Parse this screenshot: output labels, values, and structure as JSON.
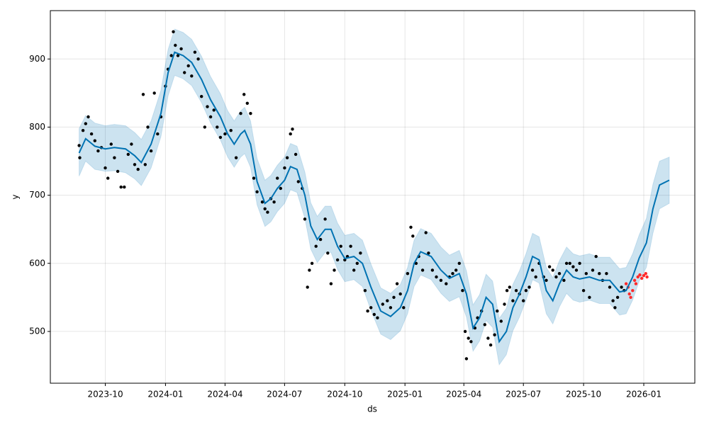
{
  "chart_data": {
    "type": "forecast",
    "xlabel": "ds",
    "ylabel": "y",
    "xlim": [
      "2023-07-09",
      "2026-03-20"
    ],
    "xticks": [
      "2023-10",
      "2024-01",
      "2024-04",
      "2024-07",
      "2024-10",
      "2025-01",
      "2025-04",
      "2025-07",
      "2025-10",
      "2026-01"
    ],
    "ylim": [
      424,
      971
    ],
    "yticks": [
      500,
      600,
      700,
      800,
      900
    ],
    "grid": true,
    "forecast": {
      "color": "#0072B2",
      "band_color": "#0072B2",
      "x": [
        "2023-08-22",
        "2023-09-01",
        "2023-09-15",
        "2023-10-01",
        "2023-10-15",
        "2023-11-01",
        "2023-11-15",
        "2023-11-25",
        "2023-12-10",
        "2023-12-25",
        "2024-01-05",
        "2024-01-15",
        "2024-01-28",
        "2024-02-10",
        "2024-02-25",
        "2024-03-10",
        "2024-03-25",
        "2024-04-05",
        "2024-04-15",
        "2024-04-25",
        "2024-05-01",
        "2024-05-10",
        "2024-05-20",
        "2024-06-01",
        "2024-06-10",
        "2024-06-20",
        "2024-07-01",
        "2024-07-10",
        "2024-07-20",
        "2024-08-01",
        "2024-08-10",
        "2024-08-20",
        "2024-09-01",
        "2024-09-10",
        "2024-09-20",
        "2024-10-01",
        "2024-10-15",
        "2024-10-28",
        "2024-11-10",
        "2024-11-25",
        "2024-12-10",
        "2024-12-25",
        "2025-01-05",
        "2025-01-15",
        "2025-01-25",
        "2025-02-10",
        "2025-02-25",
        "2025-03-10",
        "2025-03-25",
        "2025-04-05",
        "2025-04-15",
        "2025-04-25",
        "2025-05-05",
        "2025-05-15",
        "2025-05-25",
        "2025-06-05",
        "2025-06-15",
        "2025-06-25",
        "2025-07-05",
        "2025-07-15",
        "2025-07-25",
        "2025-08-05",
        "2025-08-15",
        "2025-08-25",
        "2025-09-05",
        "2025-09-15",
        "2025-09-25",
        "2025-10-10",
        "2025-10-25",
        "2025-11-10",
        "2025-11-25",
        "2025-12-05",
        "2025-12-15",
        "2025-12-25",
        "2026-01-05",
        "2026-01-15",
        "2026-01-25",
        "2026-02-09"
      ],
      "values": [
        762,
        783,
        772,
        768,
        770,
        768,
        758,
        748,
        775,
        820,
        880,
        910,
        905,
        895,
        870,
        840,
        815,
        790,
        775,
        790,
        795,
        775,
        720,
        688,
        695,
        710,
        722,
        742,
        738,
        700,
        655,
        635,
        650,
        650,
        625,
        607,
        610,
        600,
        565,
        530,
        522,
        535,
        560,
        600,
        617,
        610,
        590,
        578,
        585,
        555,
        505,
        520,
        550,
        540,
        485,
        500,
        535,
        555,
        580,
        610,
        605,
        560,
        545,
        570,
        590,
        580,
        577,
        580,
        575,
        575,
        558,
        560,
        580,
        608,
        630,
        680,
        715,
        722
      ],
      "lower": [
        728,
        750,
        738,
        735,
        736,
        733,
        724,
        714,
        740,
        786,
        846,
        876,
        871,
        861,
        836,
        806,
        781,
        756,
        741,
        756,
        761,
        741,
        686,
        654,
        661,
        676,
        688,
        708,
        704,
        666,
        621,
        601,
        616,
        616,
        591,
        573,
        576,
        566,
        531,
        496,
        488,
        501,
        526,
        566,
        583,
        576,
        556,
        544,
        551,
        521,
        471,
        486,
        516,
        506,
        451,
        466,
        501,
        521,
        546,
        576,
        571,
        526,
        511,
        536,
        556,
        546,
        543,
        546,
        541,
        541,
        524,
        526,
        546,
        574,
        594,
        644,
        680,
        688
      ],
      "upper": [
        798,
        817,
        806,
        802,
        804,
        802,
        792,
        782,
        809,
        854,
        914,
        944,
        939,
        929,
        904,
        874,
        849,
        824,
        809,
        824,
        829,
        809,
        754,
        722,
        729,
        744,
        756,
        776,
        772,
        734,
        689,
        669,
        684,
        684,
        659,
        641,
        644,
        634,
        599,
        564,
        556,
        569,
        594,
        634,
        651,
        644,
        624,
        612,
        619,
        589,
        539,
        554,
        584,
        574,
        519,
        534,
        569,
        589,
        614,
        644,
        639,
        594,
        579,
        604,
        624,
        614,
        611,
        614,
        609,
        609,
        592,
        594,
        614,
        642,
        666,
        716,
        750,
        756
      ]
    },
    "observed": {
      "color": "#000000",
      "x": [
        "2023-08-22",
        "2023-08-23",
        "2023-08-28",
        "2023-09-01",
        "2023-09-05",
        "2023-09-10",
        "2023-09-15",
        "2023-09-20",
        "2023-09-25",
        "2023-10-01",
        "2023-10-05",
        "2023-10-10",
        "2023-10-15",
        "2023-10-20",
        "2023-10-25",
        "2023-10-30",
        "2023-11-05",
        "2023-11-10",
        "2023-11-15",
        "2023-11-20",
        "2023-11-28",
        "2023-12-01",
        "2023-12-05",
        "2023-12-10",
        "2023-12-15",
        "2023-12-20",
        "2023-12-25",
        "2024-01-01",
        "2024-01-05",
        "2024-01-10",
        "2024-01-13",
        "2024-01-16",
        "2024-01-20",
        "2024-01-25",
        "2024-01-30",
        "2024-02-05",
        "2024-02-10",
        "2024-02-15",
        "2024-02-20",
        "2024-02-25",
        "2024-03-01",
        "2024-03-05",
        "2024-03-10",
        "2024-03-15",
        "2024-03-20",
        "2024-03-25",
        "2024-04-01",
        "2024-04-10",
        "2024-04-18",
        "2024-04-25",
        "2024-04-30",
        "2024-05-05",
        "2024-05-10",
        "2024-05-15",
        "2024-05-20",
        "2024-05-28",
        "2024-06-01",
        "2024-06-05",
        "2024-06-10",
        "2024-06-15",
        "2024-06-20",
        "2024-06-25",
        "2024-07-01",
        "2024-07-05",
        "2024-07-10",
        "2024-07-13",
        "2024-07-18",
        "2024-07-22",
        "2024-07-28",
        "2024-08-01",
        "2024-08-05",
        "2024-08-08",
        "2024-08-12",
        "2024-08-18",
        "2024-08-25",
        "2024-09-01",
        "2024-09-05",
        "2024-09-10",
        "2024-09-15",
        "2024-09-20",
        "2024-09-25",
        "2024-10-01",
        "2024-10-05",
        "2024-10-10",
        "2024-10-15",
        "2024-10-20",
        "2024-10-25",
        "2024-11-01",
        "2024-11-05",
        "2024-11-10",
        "2024-11-15",
        "2024-11-20",
        "2024-11-28",
        "2024-12-05",
        "2024-12-10",
        "2024-12-15",
        "2024-12-20",
        "2024-12-25",
        "2024-12-30",
        "2025-01-05",
        "2025-01-10",
        "2025-01-13",
        "2025-01-18",
        "2025-01-22",
        "2025-01-28",
        "2025-02-02",
        "2025-02-06",
        "2025-02-12",
        "2025-02-18",
        "2025-02-25",
        "2025-03-05",
        "2025-03-10",
        "2025-03-15",
        "2025-03-20",
        "2025-03-25",
        "2025-03-30",
        "2025-04-03",
        "2025-04-05",
        "2025-04-08",
        "2025-04-12",
        "2025-04-18",
        "2025-04-22",
        "2025-04-28",
        "2025-05-03",
        "2025-05-08",
        "2025-05-12",
        "2025-05-18",
        "2025-05-22",
        "2025-05-28",
        "2025-06-02",
        "2025-06-06",
        "2025-06-10",
        "2025-06-15",
        "2025-06-20",
        "2025-06-25",
        "2025-07-01",
        "2025-07-05",
        "2025-07-10",
        "2025-07-15",
        "2025-07-20",
        "2025-07-25",
        "2025-08-01",
        "2025-08-05",
        "2025-08-10",
        "2025-08-15",
        "2025-08-20",
        "2025-08-25",
        "2025-09-01",
        "2025-09-05",
        "2025-09-10",
        "2025-09-15",
        "2025-09-20",
        "2025-09-25",
        "2025-10-01",
        "2025-10-05",
        "2025-10-10",
        "2025-10-15",
        "2025-10-20",
        "2025-10-25",
        "2025-10-30",
        "2025-11-05",
        "2025-11-10",
        "2025-11-15",
        "2025-11-18",
        "2025-11-22",
        "2025-11-28",
        "2025-12-02"
      ],
      "values": [
        773,
        755,
        795,
        805,
        815,
        790,
        780,
        765,
        770,
        740,
        725,
        775,
        755,
        735,
        712,
        712,
        760,
        775,
        745,
        738,
        848,
        745,
        800,
        765,
        850,
        790,
        815,
        860,
        885,
        905,
        940,
        920,
        905,
        915,
        880,
        890,
        875,
        910,
        900,
        845,
        800,
        830,
        815,
        825,
        800,
        785,
        790,
        795,
        755,
        820,
        848,
        835,
        820,
        725,
        705,
        690,
        680,
        675,
        695,
        690,
        725,
        710,
        740,
        755,
        790,
        797,
        760,
        720,
        710,
        665,
        565,
        590,
        600,
        625,
        635,
        665,
        615,
        570,
        590,
        605,
        625,
        605,
        610,
        625,
        590,
        600,
        615,
        560,
        530,
        535,
        525,
        520,
        540,
        545,
        535,
        550,
        570,
        555,
        535,
        585,
        653,
        640,
        600,
        610,
        590,
        645,
        615,
        590,
        580,
        575,
        570,
        580,
        585,
        590,
        600,
        560,
        500,
        460,
        490,
        485,
        505,
        520,
        530,
        510,
        490,
        480,
        495,
        530,
        515,
        540,
        560,
        565,
        545,
        560,
        555,
        545,
        560,
        565,
        590,
        580,
        600,
        580,
        575,
        595,
        590,
        580,
        585,
        575,
        600,
        600,
        595,
        590,
        600,
        560,
        585,
        550,
        590,
        610,
        585,
        575,
        585,
        565,
        545,
        535,
        550,
        565,
        560
      ]
    },
    "test": {
      "color": "#ff2a2a",
      "x": [
        "2025-12-05",
        "2025-12-08",
        "2025-12-10",
        "2025-12-12",
        "2025-12-15",
        "2025-12-18",
        "2025-12-20",
        "2025-12-23",
        "2025-12-26",
        "2025-12-29",
        "2026-01-01",
        "2026-01-04",
        "2026-01-06"
      ],
      "values": [
        570,
        565,
        555,
        550,
        560,
        575,
        570,
        580,
        583,
        578,
        582,
        585,
        580
      ]
    }
  }
}
